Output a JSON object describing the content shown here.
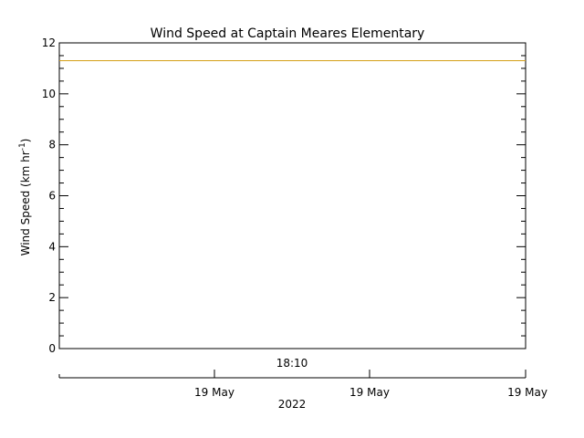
{
  "chart_data": {
    "type": "line",
    "title": "Wind Speed at Captain Meares Elementary",
    "ylabel": "Wind Speed (km hr",
    "ylabel_sup": "-1",
    "ylabel_close": ")",
    "ylim": [
      0,
      12
    ],
    "yticks": [
      0,
      2,
      4,
      6,
      8,
      10,
      12
    ],
    "ytick_labels": [
      "0",
      "2",
      "4",
      "6",
      "8",
      "10",
      "12"
    ],
    "x_time_label": "18:10",
    "x_date_ticks": [
      "19 May",
      "19 May",
      "19 May"
    ],
    "x_year_label": "2022",
    "series": [
      {
        "color": "#d4a017",
        "values": [
          11.3,
          11.3
        ]
      }
    ],
    "grid": false
  }
}
